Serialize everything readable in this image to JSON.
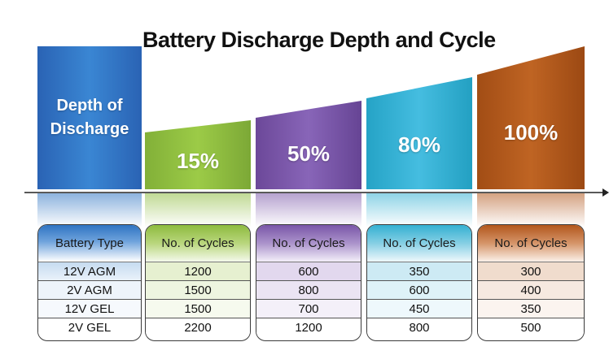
{
  "title": "Battery Discharge Depth and Cycle",
  "depth_label_line1": "Depth of",
  "depth_label_line2": "Discharge",
  "columns": [
    {
      "percent": "15%",
      "color": "#8dbb3e",
      "header": "No. of Cycles",
      "values": [
        "1200",
        "1500",
        "1500",
        "2200"
      ]
    },
    {
      "percent": "50%",
      "color": "#7a56a8",
      "header": "No. of Cycles",
      "values": [
        "600",
        "800",
        "700",
        "1200"
      ]
    },
    {
      "percent": "80%",
      "color": "#33b0d2",
      "header": "No. of Cycles",
      "values": [
        "350",
        "600",
        "450",
        "800"
      ]
    },
    {
      "percent": "100%",
      "color": "#b2561b",
      "header": "No. of Cycles",
      "values": [
        "300",
        "400",
        "350",
        "500"
      ]
    }
  ],
  "battery_table": {
    "header": "Battery Type",
    "rows": [
      "12V AGM",
      "2V AGM",
      "12V GEL",
      "2V GEL"
    ],
    "color": "#2f74c2"
  },
  "colors": {
    "dod_bar": "#2f74c2",
    "axis": "#222222"
  }
}
